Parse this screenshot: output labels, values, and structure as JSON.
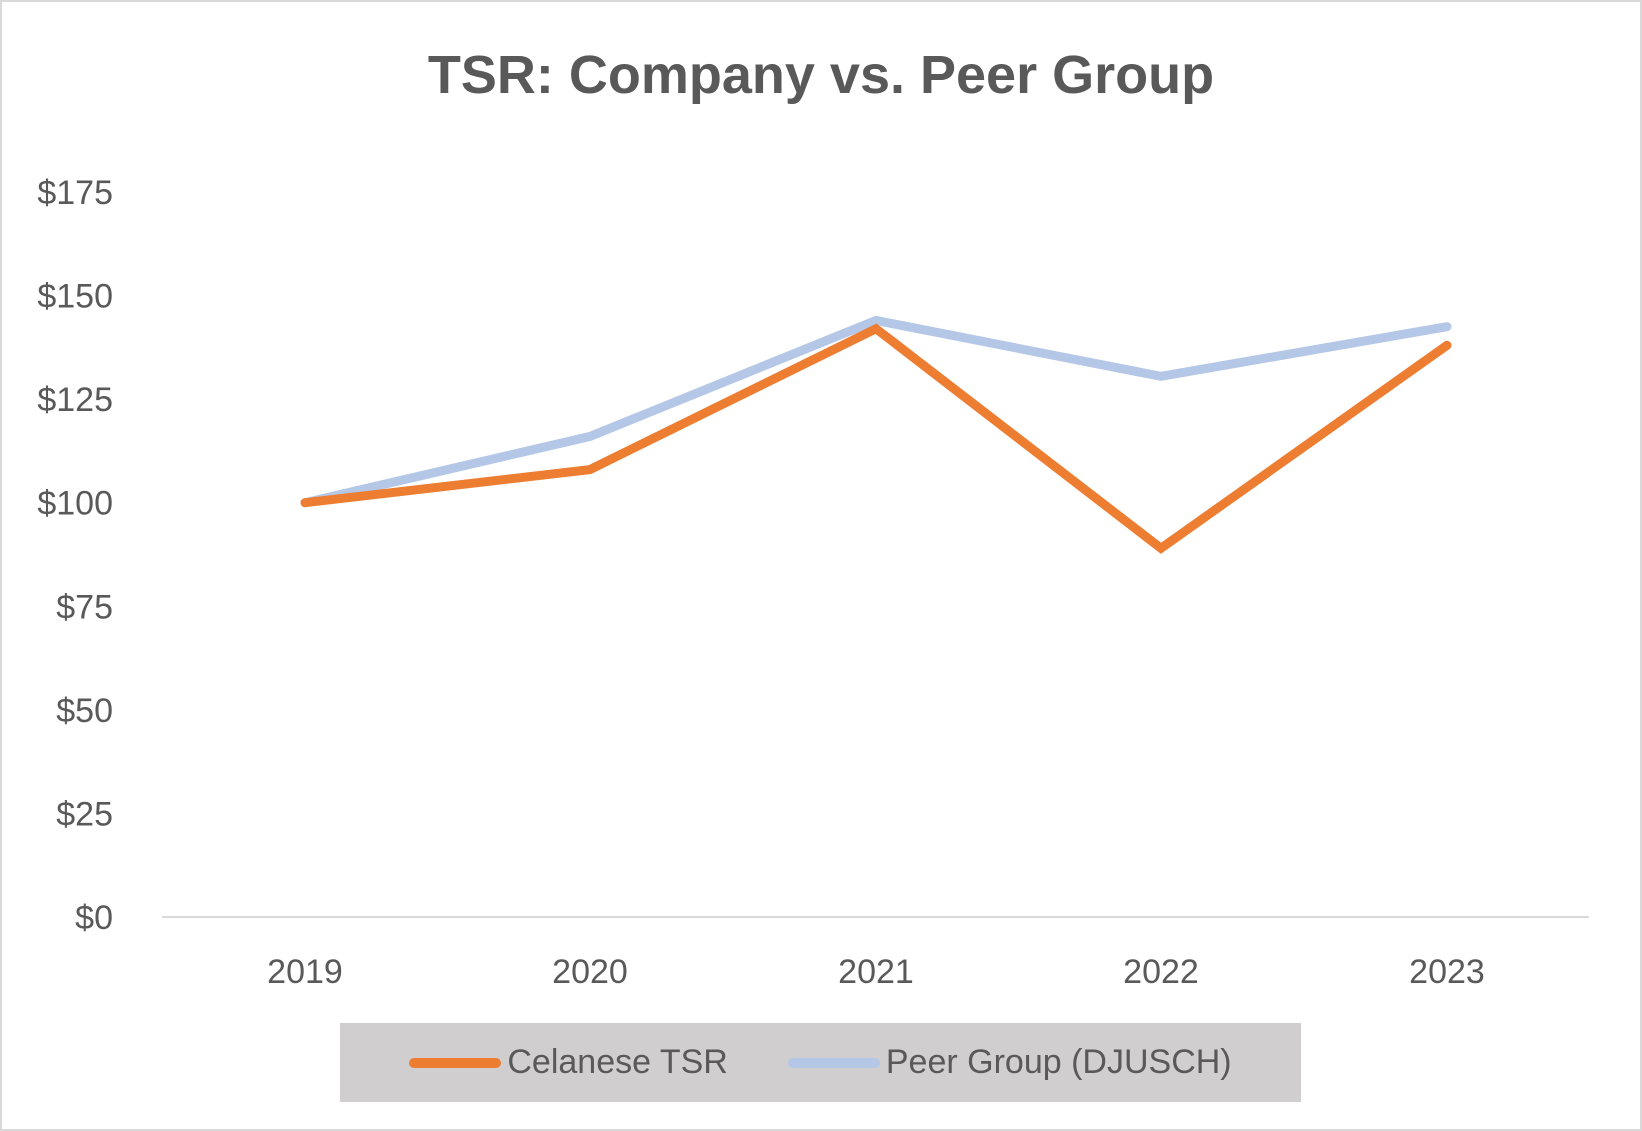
{
  "chart_data": {
    "type": "line",
    "title": "TSR: Company vs. Peer Group",
    "categories": [
      "2019",
      "2020",
      "2021",
      "2022",
      "2023"
    ],
    "ylim": [
      0,
      175
    ],
    "yticks": [
      0,
      25,
      50,
      75,
      100,
      125,
      150,
      175
    ],
    "ytick_labels": [
      "$0",
      "$25",
      "$50",
      "$75",
      "$100",
      "$125",
      "$150",
      "$175"
    ],
    "grid": false,
    "legend_position": "bottom",
    "series": [
      {
        "name": "Celanese TSR",
        "color": "#ed7d31",
        "values": [
          100,
          108,
          142,
          89,
          138
        ]
      },
      {
        "name": "Peer Group (DJUSCH)",
        "color": "#b4c7e7",
        "values": [
          100,
          116,
          144,
          130.5,
          142.5
        ]
      }
    ]
  }
}
